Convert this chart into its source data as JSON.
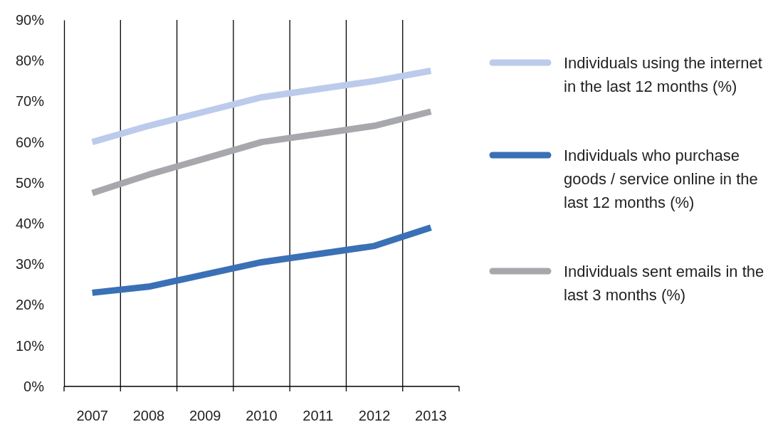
{
  "chart_data": {
    "type": "line",
    "categories": [
      "2007",
      "2008",
      "2009",
      "2010",
      "2011",
      "2012",
      "2013"
    ],
    "series": [
      {
        "name": "Individuals using the internet in the last 12 months (%)",
        "color": "#bccbeb",
        "values": [
          60,
          64,
          67.5,
          71,
          73,
          75,
          77.5
        ]
      },
      {
        "name": "Individuals who purchase goods / service online in the last 12 months (%)",
        "color": "#3a70b5",
        "values": [
          23,
          24.5,
          27.5,
          30.5,
          32.5,
          34.5,
          39
        ]
      },
      {
        "name": "Individuals sent emails in the last 3 months (%)",
        "color": "#a7a8ac",
        "values": [
          47.5,
          52,
          56,
          60,
          62,
          64,
          67.5
        ]
      }
    ],
    "ylim": [
      0,
      90
    ],
    "yticks": [
      {
        "value": 0,
        "label": "0%"
      },
      {
        "value": 10,
        "label": "10%"
      },
      {
        "value": 20,
        "label": "20%"
      },
      {
        "value": 30,
        "label": "30%"
      },
      {
        "value": 40,
        "label": "40%"
      },
      {
        "value": 50,
        "label": "50%"
      },
      {
        "value": 60,
        "label": "60%"
      },
      {
        "value": 70,
        "label": "70%"
      },
      {
        "value": 80,
        "label": "80%"
      },
      {
        "value": 90,
        "label": "90%"
      }
    ],
    "grid": "x",
    "legend": "right",
    "marker": "none",
    "line_style": "solid"
  }
}
